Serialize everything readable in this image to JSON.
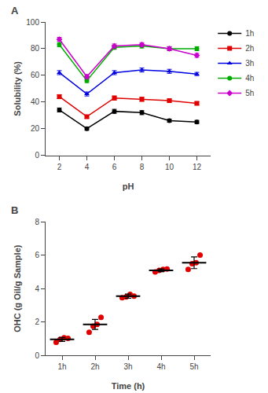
{
  "chart_data": [
    {
      "type": "line",
      "annotations": [
        {
          "text": "A"
        }
      ],
      "xlabel": "pH",
      "ylabel": "Solubility (%)",
      "x": [
        2,
        4,
        6,
        8,
        10,
        12
      ],
      "xlim": [
        1,
        13
      ],
      "xticks": [
        2,
        4,
        6,
        8,
        10,
        12
      ],
      "ylim": [
        0,
        100
      ],
      "yticks": [
        0,
        20,
        40,
        60,
        80,
        100
      ],
      "grid": false,
      "legend": "right",
      "series": [
        {
          "name": "1h",
          "color": "#000000",
          "marker": "circle",
          "values": [
            34,
            20,
            33,
            32,
            26,
            25
          ],
          "errors": [
            1.5,
            1.2,
            1.5,
            1.5,
            1.2,
            1.2
          ]
        },
        {
          "name": "2h",
          "color": "#e00000",
          "marker": "square",
          "values": [
            44,
            29,
            43,
            42,
            41,
            39
          ],
          "errors": [
            1.5,
            1.2,
            1.5,
            1.5,
            1.2,
            1.2
          ]
        },
        {
          "name": "3h",
          "color": "#0000e0",
          "marker": "triangle-up",
          "values": [
            62,
            46,
            62,
            64,
            63,
            61
          ],
          "errors": [
            1.5,
            1.5,
            1.5,
            1.5,
            1.5,
            1.2
          ]
        },
        {
          "name": "4h",
          "color": "#00aa00",
          "marker": "circle",
          "values": [
            83,
            56,
            81,
            82,
            80,
            80
          ],
          "errors": [
            1.5,
            1.5,
            1.5,
            1.5,
            1.5,
            1.5
          ]
        },
        {
          "name": "5h",
          "color": "#cc00cc",
          "marker": "diamond",
          "values": [
            87,
            59,
            82,
            83,
            80,
            75
          ],
          "errors": [
            1.5,
            1.5,
            1.5,
            1.5,
            1.5,
            1.5
          ]
        }
      ]
    },
    {
      "type": "strip",
      "annotations": [
        {
          "text": "B"
        }
      ],
      "xlabel": "Time (h)",
      "ylabel": "OHC (g Oil/g Sample)",
      "categories": [
        "1h",
        "2h",
        "3h",
        "4h",
        "5h"
      ],
      "ylim": [
        0,
        8
      ],
      "yticks": [
        0,
        2,
        4,
        6,
        8
      ],
      "grid": false,
      "series": [
        {
          "type": "points",
          "color": "#e00000",
          "marker": "circle",
          "values": [
            [
              0.78,
              0.95,
              1.05,
              1.02
            ],
            [
              1.38,
              1.75,
              1.85,
              2.28
            ],
            [
              3.45,
              3.5,
              3.65,
              3.55
            ],
            [
              5.0,
              5.1,
              5.15,
              5.18
            ],
            [
              5.15,
              5.5,
              5.55,
              6.02
            ]
          ]
        },
        {
          "type": "mean",
          "color": "#000000",
          "values": [
            0.95,
            1.85,
            3.55,
            5.1,
            5.55
          ],
          "errors": [
            0.12,
            0.3,
            0.12,
            0.08,
            0.35
          ]
        }
      ]
    }
  ]
}
